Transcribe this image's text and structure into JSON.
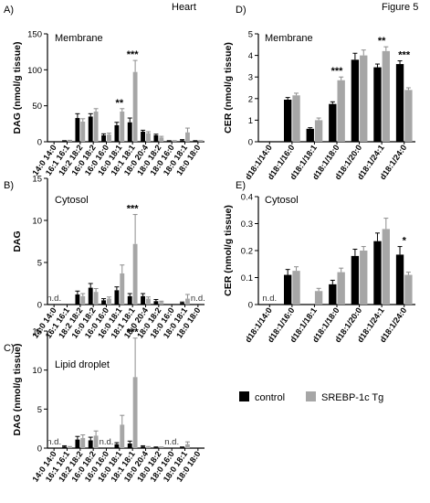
{
  "header": {
    "left": "Heart",
    "right": "Figure 5"
  },
  "legend": {
    "control": "control",
    "tg": "SREBP-1c Tg",
    "control_color": "#000000",
    "tg_color": "#a6a6a6"
  },
  "chart_data": [
    {
      "id": "A",
      "panel_label": "A)",
      "title": "Membrane",
      "type": "bar",
      "ylabel": "DAG (nmol/g tissue)",
      "ylim": [
        0,
        150
      ],
      "yticks": [
        0,
        50,
        100,
        150
      ],
      "categories": [
        "14:0 14:0",
        "16:1 16:1",
        "18:2 18:2",
        "16:0 18:2",
        "16:0 16:0",
        "16:0 18:1",
        "18:1 18:1",
        "18:0 20:4",
        "18:0 18:2",
        "18:0 16:0",
        "18:0 18:1",
        "18:0 18:0"
      ],
      "series": [
        {
          "name": "control",
          "values": [
            0,
            1,
            33,
            35,
            9,
            23,
            27,
            14,
            9,
            1,
            2,
            1
          ],
          "errors": [
            0,
            0.5,
            6,
            4,
            2,
            4,
            6,
            2,
            1.5,
            0.5,
            1,
            0.5
          ]
        },
        {
          "name": "SREBP-1c Tg",
          "values": [
            0,
            1.5,
            28,
            42,
            10,
            42,
            97,
            12,
            6,
            1,
            13,
            1
          ],
          "errors": [
            0,
            0.5,
            4,
            4,
            2,
            4,
            16,
            2,
            1.5,
            0.5,
            6,
            0.5
          ]
        }
      ],
      "nd": [],
      "significance": [
        {
          "category": "16:0 18:1",
          "text": "**"
        },
        {
          "category": "18:1 18:1",
          "text": "***"
        }
      ]
    },
    {
      "id": "B",
      "panel_label": "B)",
      "title": "Cytosol",
      "type": "bar",
      "ylabel": "DAG",
      "ylim": [
        0,
        15
      ],
      "yticks": [
        0,
        5,
        10,
        15
      ],
      "categories": [
        "14:0 14:0",
        "16:1 16:1",
        "18:2 18:2",
        "16:0 18:2",
        "16:0 16:0",
        "16:0 18:1",
        "18:1 18:1",
        "18:0 20:4",
        "18:0 18:2",
        "18:0 16:0",
        "18:0 18:1",
        "18:0 18:0"
      ],
      "series": [
        {
          "name": "control",
          "values": [
            0,
            0,
            1.2,
            2.0,
            0.5,
            1.7,
            1.0,
            1.0,
            0.4,
            0,
            0.2,
            0
          ],
          "errors": [
            0,
            0,
            0.4,
            0.5,
            0.2,
            0.4,
            0.3,
            0.3,
            0.2,
            0,
            0.1,
            0
          ]
        },
        {
          "name": "SREBP-1c Tg",
          "values": [
            0,
            0,
            1.0,
            1.5,
            0.7,
            3.7,
            7.2,
            0.7,
            0.3,
            0,
            0.7,
            0
          ],
          "errors": [
            0,
            0,
            0.3,
            0.4,
            0.2,
            1.0,
            3.5,
            0.2,
            0.1,
            0,
            0.5,
            0
          ]
        }
      ],
      "nd": [
        {
          "category": "14:0 14:0",
          "text": "n.d."
        },
        {
          "category": "18:0 18:0",
          "text": "n.d."
        }
      ],
      "significance": [
        {
          "category": "18:1 18:1",
          "text": "***"
        }
      ]
    },
    {
      "id": "C",
      "panel_label": "C)",
      "title": "Lipid droplet",
      "type": "bar",
      "ylabel": "DAG (nmol/g tissue)",
      "ylim": [
        0,
        15
      ],
      "yticks": [
        0,
        5,
        10,
        15
      ],
      "categories": [
        "14:0 14:0",
        "16:1 16:1",
        "18:2 18:2",
        "16:0 18:2",
        "16:0 16:0",
        "16:0 18:1",
        "18:1 18:1",
        "18:0 20:4",
        "18:0 18:2",
        "18:0 16:0",
        "18:0 18:1",
        "18:0 18:0"
      ],
      "series": [
        {
          "name": "control",
          "values": [
            0,
            0.2,
            1.1,
            1.0,
            0,
            0.5,
            0.6,
            0.2,
            0.1,
            0,
            0.1,
            0
          ],
          "errors": [
            0,
            0.1,
            0.4,
            0.4,
            0,
            0.2,
            0.3,
            0.1,
            0.05,
            0,
            0.05,
            0
          ]
        },
        {
          "name": "SREBP-1c Tg",
          "values": [
            0,
            0.1,
            1.3,
            1.6,
            0,
            3.0,
            9.1,
            0.1,
            0.1,
            0,
            0.5,
            0
          ],
          "errors": [
            0,
            0.1,
            0.4,
            0.6,
            0,
            1.2,
            5.0,
            0.1,
            0.05,
            0,
            0.3,
            0
          ]
        }
      ],
      "nd": [
        {
          "category": "14:0 14:0",
          "text": "n.d."
        },
        {
          "category": "16:0 16:0",
          "text": "n.d."
        },
        {
          "category": "18:0 16:0",
          "text": "n.d."
        }
      ],
      "significance": [
        {
          "category": "18:1 18:1",
          "text": "***"
        }
      ]
    },
    {
      "id": "D",
      "panel_label": "D)",
      "title": "Membrane",
      "type": "bar",
      "ylabel": "CER (nmol/g tissue)",
      "ylim": [
        0,
        5
      ],
      "yticks": [
        0,
        1,
        2,
        3,
        4,
        5
      ],
      "categories": [
        "d18:1/14:0",
        "d18:1/16:0",
        "d18:1/18:1",
        "d18:1/18:0",
        "d18:1/20:0",
        "d18:1/24:1",
        "d18:1/24:0"
      ],
      "series": [
        {
          "name": "control",
          "values": [
            0,
            1.95,
            0.6,
            1.75,
            3.8,
            3.45,
            3.6
          ],
          "errors": [
            0,
            0.1,
            0.05,
            0.1,
            0.3,
            0.15,
            0.15
          ]
        },
        {
          "name": "SREBP-1c Tg",
          "values": [
            0,
            2.15,
            1.0,
            2.85,
            4.0,
            4.2,
            2.4
          ],
          "errors": [
            0,
            0.1,
            0.1,
            0.15,
            0.25,
            0.2,
            0.1
          ]
        }
      ],
      "nd": [],
      "significance": [
        {
          "category": "d18:1/18:0",
          "text": "***"
        },
        {
          "category": "d18:1/24:1",
          "text": "**"
        },
        {
          "category": "d18:1/24:0",
          "text": "***"
        }
      ]
    },
    {
      "id": "E",
      "panel_label": "E)",
      "title": "Cytosol",
      "type": "bar",
      "ylabel": "CER (nmol/g tissue)",
      "ylim": [
        0,
        0.4
      ],
      "yticks": [
        0,
        0.1,
        0.2,
        0.3,
        0.4
      ],
      "categories": [
        "d18:1/14:0",
        "d18:1/16:0",
        "d18:1/18:1",
        "d18:1/18:0",
        "d18:1/20:0",
        "d18:1/24:1",
        "d18:1/24:0"
      ],
      "series": [
        {
          "name": "control",
          "values": [
            0,
            0.11,
            0,
            0.075,
            0.18,
            0.235,
            0.185
          ],
          "errors": [
            0,
            0.02,
            0,
            0.015,
            0.025,
            0.03,
            0.03
          ]
        },
        {
          "name": "SREBP-1c Tg",
          "values": [
            0,
            0.125,
            0.05,
            0.12,
            0.2,
            0.28,
            0.11
          ],
          "errors": [
            0,
            0.015,
            0.01,
            0.015,
            0.015,
            0.04,
            0.01
          ]
        }
      ],
      "nd": [
        {
          "category": "d18:1/14:0",
          "text": "n.d."
        }
      ],
      "significance": [
        {
          "category": "d18:1/24:0",
          "text": "*"
        }
      ]
    }
  ]
}
